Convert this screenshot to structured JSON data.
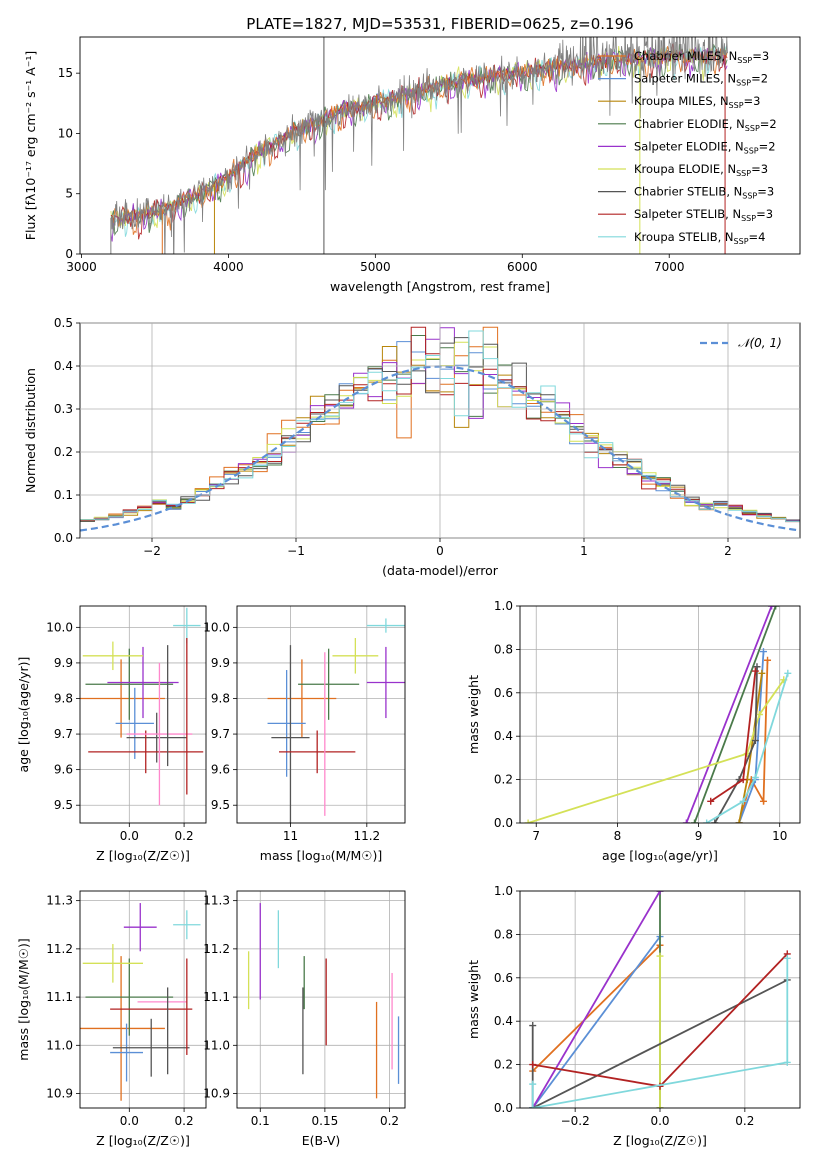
{
  "figure_title": "PLATE=1827, MJD=53531, FIBERID=0625, z=0.196",
  "colors": {
    "chabrier_miles": "#e07020",
    "salpeter_miles": "#5b8fd6",
    "kroupa_miles": "#b8860b",
    "chabrier_elodie": "#4a7a4a",
    "salpeter_elodie": "#9932cc",
    "kroupa_elodie": "#d4e157",
    "chabrier_stelib": "#555555",
    "salpeter_stelib": "#b22222",
    "kroupa_stelib": "#80d8dc",
    "grid": "#b0b0b0",
    "observed": "#808080",
    "gaussian": "#5b8fd6"
  },
  "chart_data": [
    {
      "id": "spectrum",
      "type": "line",
      "title": "PLATE=1827, MJD=53531, FIBERID=0625, z=0.196",
      "xlabel": "wavelength [Angstrom, rest frame]",
      "ylabel": "Flux [fλ10⁻¹⁷ erg cm⁻² s⁻¹ A⁻¹]",
      "xlim": [
        2990,
        7890
      ],
      "ylim": [
        0,
        18
      ],
      "xticks": [
        3000,
        4000,
        5000,
        6000,
        7000
      ],
      "yticks": [
        0,
        5,
        10,
        15
      ],
      "grid": false,
      "legend_position": "right",
      "legend": [
        "Chabrier MILES, N_SSP=3",
        "Salpeter MILES, N_SSP=2",
        "Kroupa MILES, N_SSP=3",
        "Chabrier ELODIE, N_SSP=2",
        "Salpeter ELODIE, N_SSP=2",
        "Kroupa ELODIE, N_SSP=3",
        "Chabrier STELIB, N_SSP=3",
        "Salpeter STELIB, N_SSP=3",
        "Kroupa STELIB, N_SSP=4"
      ],
      "continuum": {
        "x": [
          3200,
          3500,
          3800,
          4000,
          4200,
          4500,
          4800,
          5000,
          5300,
          5600,
          5900,
          6200,
          6500,
          6800,
          7100,
          7400
        ],
        "y": [
          3.0,
          3.5,
          5.0,
          6.5,
          8.5,
          10.5,
          12.0,
          12.5,
          13.5,
          14.5,
          15.0,
          15.5,
          16.0,
          16.3,
          16.5,
          16.5
        ]
      }
    },
    {
      "id": "residuals",
      "type": "histogram",
      "xlabel": "(data-model)/error",
      "ylabel": "Normed distribution",
      "xlim": [
        -2.5,
        2.5
      ],
      "ylim": [
        0,
        0.5
      ],
      "xticks": [
        -2,
        -1,
        0,
        1,
        2
      ],
      "yticks": [
        0.0,
        0.1,
        0.2,
        0.3,
        0.4,
        0.5
      ],
      "grid": true,
      "legend_position": "top-right",
      "legend": [
        "𝒩(0, 1)"
      ],
      "bin_width": 0.1,
      "gaussian": {
        "mean": 0,
        "sigma": 1
      }
    },
    {
      "id": "age_vs_z",
      "type": "errorbar",
      "xlabel": "Z [log₁₀(Z/Z☉)]",
      "ylabel": "age  [log₁₀(age/yr)]",
      "xlim": [
        -0.18,
        0.28
      ],
      "ylim": [
        9.45,
        10.06
      ],
      "xticks": [
        -0.0,
        0.2
      ],
      "xtick_labels": [
        "0.0",
        "0.2"
      ],
      "yticks": [
        9.5,
        9.6,
        9.7,
        9.8,
        9.9,
        10.0
      ],
      "grid": true,
      "points": [
        {
          "series": "chabrier_miles",
          "x": -0.03,
          "y": 9.8,
          "xerr": 0.16,
          "yerr": 0.11
        },
        {
          "series": "salpeter_miles",
          "x": 0.02,
          "y": 9.73,
          "xerr": 0.07,
          "yerr": 0.1
        },
        {
          "series": "chabrier_elodie",
          "x": 0.0,
          "y": 9.84,
          "xerr": 0.16,
          "yerr": 0.1
        },
        {
          "series": "salpeter_elodie",
          "x": 0.05,
          "y": 9.845,
          "xerr": 0.13,
          "yerr": 0.1
        },
        {
          "series": "kroupa_elodie",
          "x": -0.06,
          "y": 9.92,
          "xerr": 0.11,
          "yerr": 0.04
        },
        {
          "series": "chabrier_stelib",
          "x": 0.1,
          "y": 9.69,
          "xerr": 0.11,
          "yerr": 0.07
        },
        {
          "series": "salpeter_stelib",
          "x": 0.06,
          "y": 9.65,
          "xerr": 0.21,
          "yerr": 0.06
        },
        {
          "series": "kroupa_stelib",
          "x": 0.21,
          "y": 10.005,
          "xerr": 0.05,
          "yerr": 0.05
        },
        {
          "series": "hotpink",
          "x": 0.11,
          "y": 9.7,
          "xerr": 0.12,
          "yerr": 0.2
        },
        {
          "series": "chabrier_stelib",
          "x": 0.14,
          "y": 9.78,
          "xerr": 0.0,
          "yerr": 0.17
        },
        {
          "series": "salpeter_stelib",
          "x": 0.21,
          "y": 9.75,
          "xerr": 0.0,
          "yerr": 0.22
        }
      ]
    },
    {
      "id": "age_vs_mass",
      "type": "errorbar",
      "xlabel": "mass [log₁₀(M/M☉)]",
      "ylabel": "",
      "xlim": [
        10.86,
        11.3
      ],
      "ylim": [
        9.45,
        10.06
      ],
      "xticks": [
        11.0,
        11.2
      ],
      "yticks": [
        9.5,
        9.6,
        9.7,
        9.8,
        9.9,
        10.0
      ],
      "grid": true,
      "points": [
        {
          "series": "chabrier_miles",
          "x": 11.03,
          "y": 9.8,
          "xerr": 0.09,
          "yerr": 0.11
        },
        {
          "series": "salpeter_miles",
          "x": 10.99,
          "y": 9.73,
          "xerr": 0.05,
          "yerr": 0.15
        },
        {
          "series": "chabrier_elodie",
          "x": 11.1,
          "y": 9.84,
          "xerr": 0.08,
          "yerr": 0.1
        },
        {
          "series": "salpeter_elodie",
          "x": 11.25,
          "y": 9.845,
          "xerr": 0.05,
          "yerr": 0.1
        },
        {
          "series": "kroupa_elodie",
          "x": 11.17,
          "y": 9.92,
          "xerr": 0.06,
          "yerr": 0.05
        },
        {
          "series": "chabrier_stelib",
          "x": 11.0,
          "y": 9.69,
          "xerr": 0.05,
          "yerr": 0.26
        },
        {
          "series": "salpeter_stelib",
          "x": 11.07,
          "y": 9.65,
          "xerr": 0.1,
          "yerr": 0.06
        },
        {
          "series": "kroupa_stelib",
          "x": 11.25,
          "y": 10.005,
          "xerr": 0.05,
          "yerr": 0.02
        },
        {
          "series": "hotpink",
          "x": 11.09,
          "y": 9.7,
          "xerr": 0.0,
          "yerr": 0.23
        }
      ]
    },
    {
      "id": "weight_vs_age",
      "type": "line",
      "xlabel": "age  [log₁₀(age/yr)]",
      "ylabel": "mass weight",
      "xlim": [
        6.8,
        10.25
      ],
      "ylim": [
        0,
        1
      ],
      "xticks": [
        7,
        8,
        9,
        10
      ],
      "yticks": [
        0.0,
        0.2,
        0.4,
        0.6,
        0.8,
        1.0
      ],
      "grid": true,
      "series": [
        {
          "name": "chabrier_miles",
          "x": [
            9.5,
            9.65,
            9.8,
            9.85
          ],
          "y": [
            0.0,
            0.2,
            0.1,
            0.75
          ]
        },
        {
          "name": "salpeter_miles",
          "x": [
            9.5,
            9.7,
            9.8
          ],
          "y": [
            0.0,
            0.2,
            0.79
          ]
        },
        {
          "name": "kroupa_miles",
          "x": [
            9.5,
            9.6,
            9.78
          ],
          "y": [
            0.0,
            0.2,
            0.69
          ]
        },
        {
          "name": "chabrier_elodie",
          "x": [
            8.95,
            9.95
          ],
          "y": [
            0.0,
            1.0
          ]
        },
        {
          "name": "salpeter_elodie",
          "x": [
            8.85,
            9.9
          ],
          "y": [
            0.0,
            1.0
          ]
        },
        {
          "name": "kroupa_elodie",
          "x": [
            6.9,
            9.6,
            9.75,
            10.05
          ],
          "y": [
            0.0,
            0.32,
            0.5,
            0.66
          ]
        },
        {
          "name": "chabrier_stelib",
          "x": [
            9.2,
            9.5,
            9.7,
            9.72
          ],
          "y": [
            0.0,
            0.2,
            0.38,
            0.72
          ]
        },
        {
          "name": "salpeter_stelib",
          "x": [
            9.15,
            9.55,
            9.7
          ],
          "y": [
            0.1,
            0.2,
            0.7
          ]
        },
        {
          "name": "kroupa_stelib",
          "x": [
            9.1,
            9.55,
            9.7,
            10.1
          ],
          "y": [
            0.0,
            0.1,
            0.21,
            0.69
          ]
        }
      ]
    },
    {
      "id": "mass_vs_z",
      "type": "errorbar",
      "xlabel": "Z [log₁₀(Z/Z☉)]",
      "ylabel": "mass [log₁₀(M/M☉)]",
      "xlim": [
        -0.18,
        0.28
      ],
      "ylim": [
        10.87,
        11.32
      ],
      "xticks": [
        0.0,
        0.2
      ],
      "yticks": [
        10.9,
        11.0,
        11.1,
        11.2,
        11.3
      ],
      "grid": true,
      "points": [
        {
          "series": "chabrier_miles",
          "x": -0.03,
          "y": 11.035,
          "xerr": 0.16,
          "yerr": 0.15
        },
        {
          "series": "salpeter_miles",
          "x": -0.01,
          "y": 10.985,
          "xerr": 0.06,
          "yerr": 0.06
        },
        {
          "series": "chabrier_elodie",
          "x": 0.0,
          "y": 11.1,
          "xerr": 0.16,
          "yerr": 0.08
        },
        {
          "series": "salpeter_elodie",
          "x": 0.04,
          "y": 11.245,
          "xerr": 0.06,
          "yerr": 0.05
        },
        {
          "series": "kroupa_elodie",
          "x": -0.06,
          "y": 11.17,
          "xerr": 0.11,
          "yerr": 0.04
        },
        {
          "series": "chabrier_stelib",
          "x": 0.08,
          "y": 10.995,
          "xerr": 0.14,
          "yerr": 0.06
        },
        {
          "series": "salpeter_stelib",
          "x": 0.08,
          "y": 11.075,
          "xerr": 0.15,
          "yerr": 0.0
        },
        {
          "series": "kroupa_stelib",
          "x": 0.21,
          "y": 11.25,
          "xerr": 0.05,
          "yerr": 0.03
        },
        {
          "series": "hotpink",
          "x": 0.12,
          "y": 11.09,
          "xerr": 0.09,
          "yerr": 0.0
        },
        {
          "series": "chabrier_stelib",
          "x": 0.14,
          "y": 11.03,
          "xerr": 0.0,
          "yerr": 0.09
        },
        {
          "series": "salpeter_stelib",
          "x": 0.21,
          "y": 11.08,
          "xerr": 0.0,
          "yerr": 0.1
        }
      ]
    },
    {
      "id": "mass_vs_ebv",
      "type": "errorbar",
      "xlabel": "E(B-V)",
      "ylabel": "",
      "xlim": [
        0.082,
        0.212
      ],
      "ylim": [
        10.87,
        11.32
      ],
      "xticks": [
        0.1,
        0.15,
        0.2
      ],
      "yticks": [
        10.9,
        11.0,
        11.1,
        11.2,
        11.3
      ],
      "grid": true,
      "points": [
        {
          "series": "kroupa_elodie",
          "x": 0.091,
          "y": 11.135,
          "xerr": 0,
          "yerr": 0.06
        },
        {
          "series": "salpeter_elodie",
          "x": 0.1,
          "y": 11.195,
          "xerr": 0,
          "yerr": 0.1
        },
        {
          "series": "kroupa_stelib",
          "x": 0.114,
          "y": 11.22,
          "xerr": 0,
          "yerr": 0.06
        },
        {
          "series": "chabrier_stelib",
          "x": 0.133,
          "y": 11.03,
          "xerr": 0,
          "yerr": 0.09
        },
        {
          "series": "chabrier_elodie",
          "x": 0.134,
          "y": 11.13,
          "xerr": 0,
          "yerr": 0.055
        },
        {
          "series": "salpeter_stelib",
          "x": 0.151,
          "y": 11.09,
          "xerr": 0,
          "yerr": 0.09
        },
        {
          "series": "chabrier_miles",
          "x": 0.19,
          "y": 10.99,
          "xerr": 0,
          "yerr": 0.1
        },
        {
          "series": "hotpink",
          "x": 0.202,
          "y": 11.05,
          "xerr": 0,
          "yerr": 0.1
        },
        {
          "series": "salpeter_miles",
          "x": 0.207,
          "y": 10.99,
          "xerr": 0,
          "yerr": 0.07
        }
      ]
    },
    {
      "id": "weight_vs_z",
      "type": "line",
      "xlabel": "Z [log₁₀(Z/Z☉)]",
      "ylabel": "mass weight",
      "xlim": [
        -0.33,
        0.33
      ],
      "ylim": [
        0,
        1
      ],
      "xticks": [
        -0.2,
        0.0,
        0.2
      ],
      "yticks": [
        0.0,
        0.2,
        0.4,
        0.6,
        0.8,
        1.0
      ],
      "grid": true,
      "series": [
        {
          "name": "chabrier_miles",
          "x": [
            -0.3,
            0.0
          ],
          "y": [
            0.17,
            0.75
          ]
        },
        {
          "name": "salpeter_miles",
          "x": [
            -0.3,
            0.0
          ],
          "y": [
            0.0,
            0.79
          ]
        },
        {
          "name": "chabrier_elodie",
          "x": [
            0.0,
            0.0
          ],
          "y": [
            0.0,
            1.0
          ]
        },
        {
          "name": "salpeter_elodie",
          "x": [
            -0.3,
            0.0
          ],
          "y": [
            0.0,
            1.0
          ]
        },
        {
          "name": "kroupa_elodie",
          "x": [
            0.0,
            0.0
          ],
          "y": [
            0.0,
            0.7
          ]
        },
        {
          "name": "chabrier_stelib",
          "x": [
            -0.3,
            -0.3,
            0.3
          ],
          "y": [
            0.38,
            0.0,
            0.59
          ]
        },
        {
          "name": "salpeter_stelib",
          "x": [
            -0.3,
            0.0,
            0.3
          ],
          "y": [
            0.2,
            0.1,
            0.71
          ]
        },
        {
          "name": "kroupa_stelib",
          "x": [
            -0.3,
            -0.3,
            0.3,
            0.3
          ],
          "y": [
            0.11,
            0.0,
            0.21,
            0.69
          ]
        }
      ]
    }
  ]
}
